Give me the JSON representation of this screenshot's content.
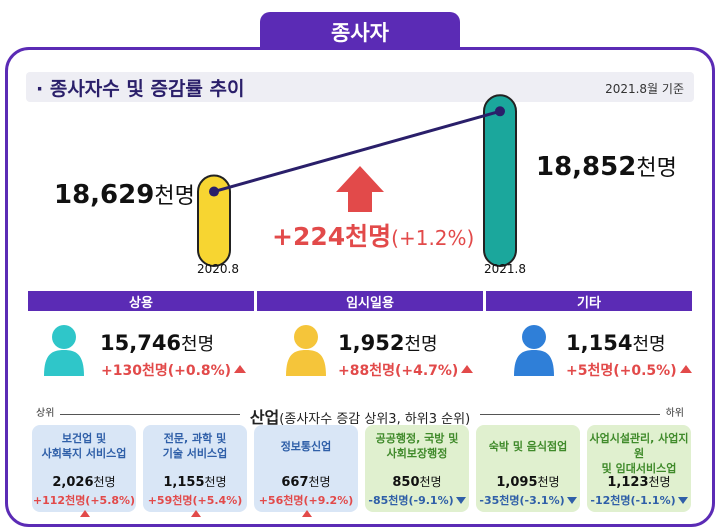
{
  "tab_label": "종사자",
  "header": {
    "title": "· 종사자수 및 증감률 추이",
    "date": "2021.8월 기준"
  },
  "chart_data": {
    "type": "bar",
    "categories": [
      "2020.8",
      "2021.8"
    ],
    "values": [
      18629,
      18852
    ],
    "unit": "천명",
    "value_labels": [
      "18,629",
      "18,852"
    ],
    "change": {
      "value": "+224",
      "unit": "천명",
      "pct": "(+1.2%)"
    },
    "ylim": [
      18400,
      18900
    ],
    "colors": {
      "bar_2020": "#f7d531",
      "bar_2021": "#1ba79c",
      "accent": "#5b2bb5",
      "increase": "#e24a4a",
      "decrease": "#2f5fa8"
    }
  },
  "categories": [
    {
      "label": "상용",
      "value": "15,746",
      "unit": "천명",
      "change": "+130천명(+0.8%)",
      "icon": "person-icon",
      "color": "#2fc6c9"
    },
    {
      "label": "임시일용",
      "value": "1,952",
      "unit": "천명",
      "change": "+88천명(+4.7%)",
      "icon": "person-icon",
      "color": "#f5c53a"
    },
    {
      "label": "기타",
      "value": "1,154",
      "unit": "천명",
      "change": "+5천명(+0.5%)",
      "icon": "person-icon",
      "color": "#2f7fd8"
    }
  ],
  "industry": {
    "title": "산업",
    "subtitle": "(종사자수 증감 상위3, 하위3 순위)",
    "rank_left": "상위",
    "rank_right": "하위",
    "items": [
      {
        "label_lines": [
          "보건업 및",
          "사회복지 서비스업"
        ],
        "value": "2,026",
        "unit": "천명",
        "change": "+112천명(+5.8%)",
        "dir": "up"
      },
      {
        "label_lines": [
          "전문, 과학 및",
          "기술 서비스업"
        ],
        "value": "1,155",
        "unit": "천명",
        "change": "+59천명(+5.4%)",
        "dir": "up"
      },
      {
        "label_lines": [
          "정보통신업"
        ],
        "value": "667",
        "unit": "천명",
        "change": "+56천명(+9.2%)",
        "dir": "up"
      },
      {
        "label_lines": [
          "공공행정, 국방 및",
          "사회보장행정"
        ],
        "value": "850",
        "unit": "천명",
        "change": "-85천명(-9.1%)",
        "dir": "down"
      },
      {
        "label_lines": [
          "숙박 및 음식점업"
        ],
        "value": "1,095",
        "unit": "천명",
        "change": "-35천명(-3.1%)",
        "dir": "down"
      },
      {
        "label_lines": [
          "사업시설관리, 사업지원",
          "및 임대서비스업"
        ],
        "value": "1,123",
        "unit": "천명",
        "change": "-12천명(-1.1%)",
        "dir": "down"
      }
    ]
  }
}
